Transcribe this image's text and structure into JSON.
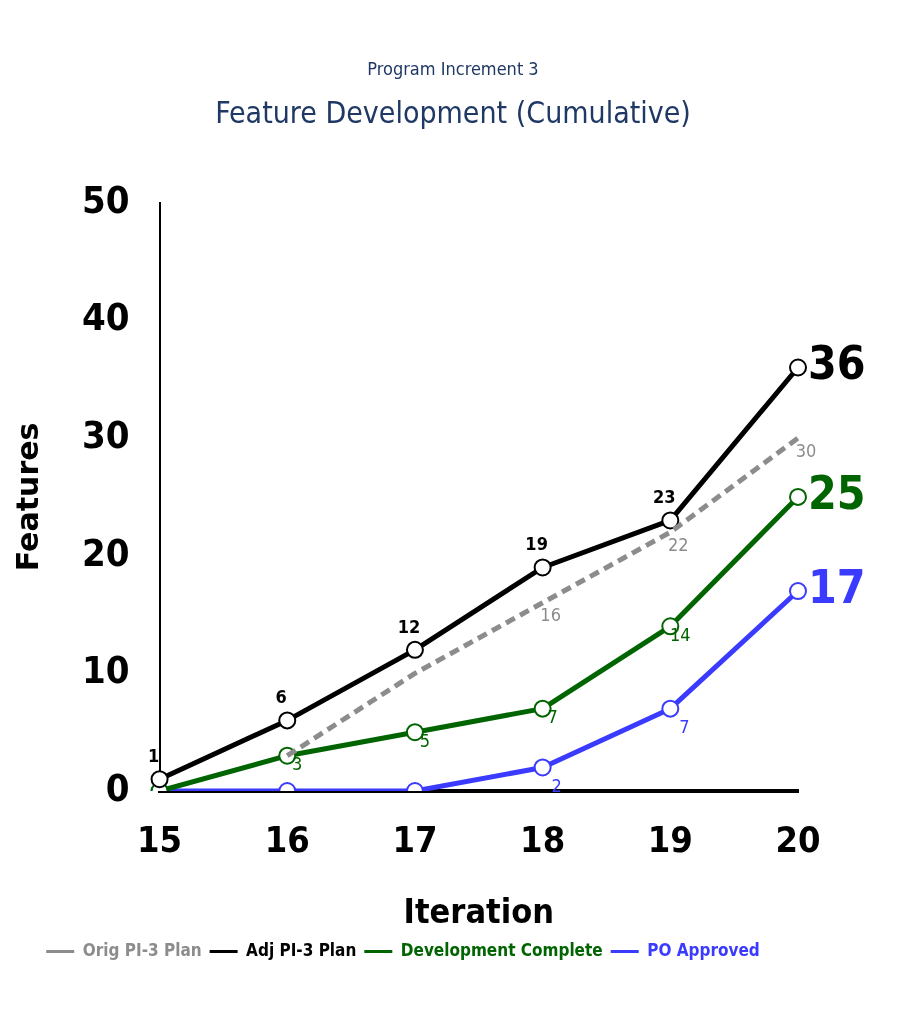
{
  "chart_data": {
    "type": "line",
    "subtitle": "Program Increment 3",
    "title": "Feature Development (Cumulative)",
    "xlabel": "Iteration",
    "ylabel": "Features",
    "categories": [
      "15",
      "16",
      "17",
      "18",
      "19",
      "20"
    ],
    "ylim": [
      0,
      50
    ],
    "yticks": [
      0,
      10,
      20,
      30,
      40,
      50
    ],
    "grid": false,
    "legend": "bottom",
    "marker": "circle",
    "series": [
      {
        "name": "Orig PI-3 Plan",
        "color": "#8c8c8c",
        "line_style": "dashed",
        "marker": "none",
        "values": [
          null,
          3,
          10,
          16,
          22,
          30
        ],
        "value_labels": [
          null,
          null,
          null,
          "16",
          "22",
          "30"
        ]
      },
      {
        "name": "Adj PI-3 Plan",
        "color": "#000000",
        "line_style": "solid",
        "values": [
          1,
          6,
          12,
          19,
          23,
          36
        ],
        "value_labels": [
          "1",
          "6",
          "12",
          "19",
          "23",
          "36"
        ]
      },
      {
        "name": "Development Complete",
        "color": "#006400",
        "line_style": "solid",
        "values": [
          0,
          3,
          5,
          7,
          14,
          25
        ],
        "value_labels": [
          null,
          "3",
          "5",
          "7",
          "14",
          "25"
        ]
      },
      {
        "name": "PO Approved",
        "color": "#3b3bff",
        "line_style": "solid",
        "values": [
          0,
          0,
          0,
          2,
          7,
          17
        ],
        "value_labels": [
          null,
          null,
          null,
          "2",
          "7",
          "17"
        ]
      }
    ]
  }
}
